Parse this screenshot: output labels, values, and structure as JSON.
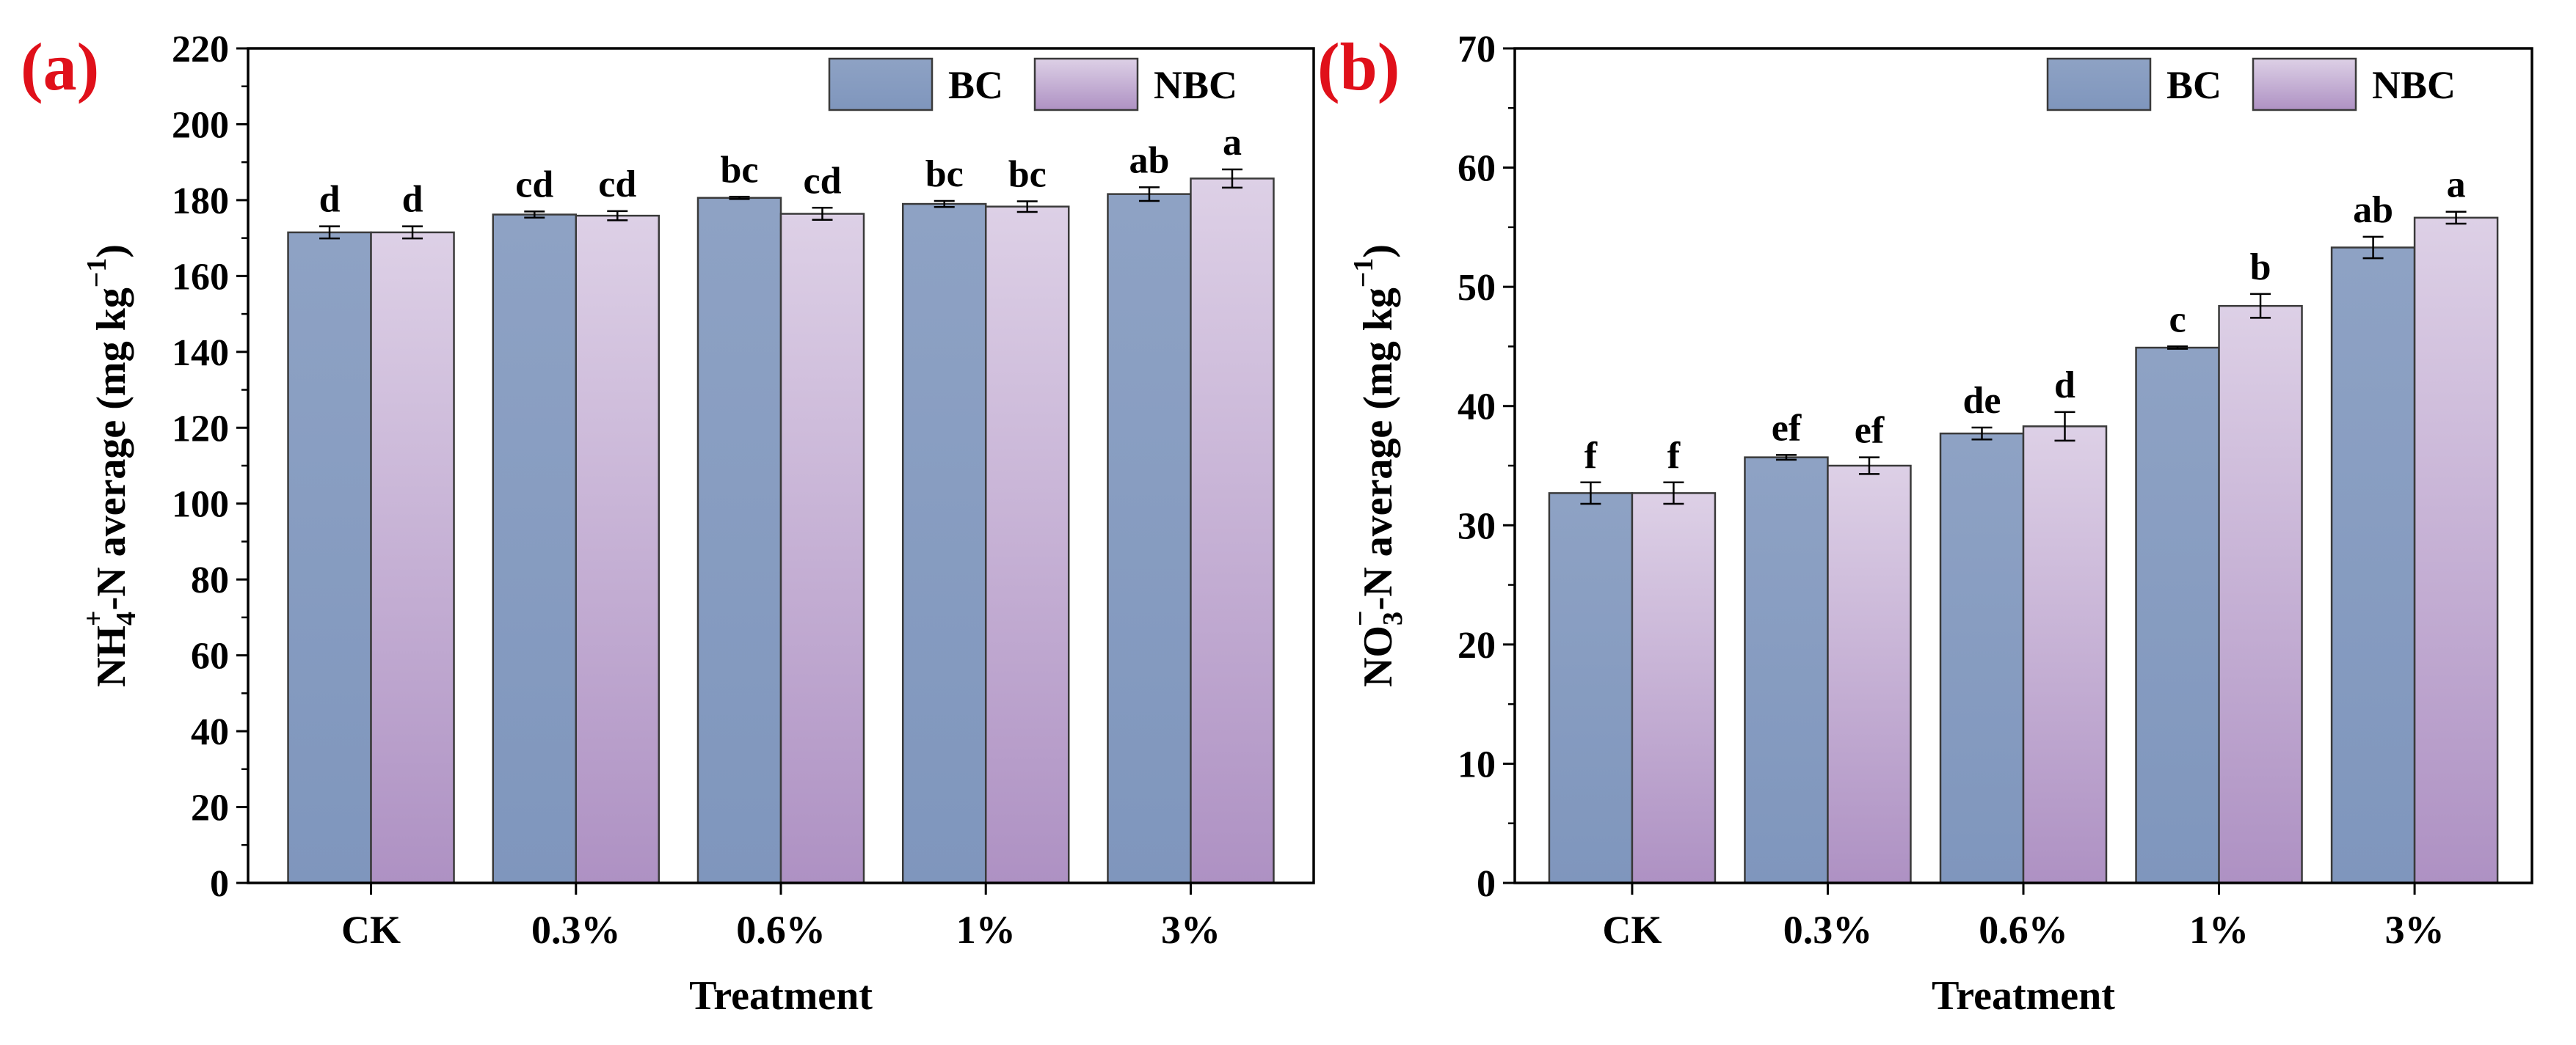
{
  "colors": {
    "bc_top": "#8ea2c4",
    "bc_bottom": "#7f96bd",
    "nbc_top": "#ddd0e6",
    "nbc_bottom": "#ae91c3",
    "panel_label": "#e0101a",
    "axis": "#000000"
  },
  "chart_data": [
    {
      "type": "bar",
      "panel_label": "(a)",
      "categories": [
        "CK",
        "0.3%",
        "0.6%",
        "1%",
        "3%"
      ],
      "xlabel": "Treatment",
      "ylabel": {
        "base": "NH",
        "sub": "4",
        "sup": "+",
        "mid": "-N average (mg kg",
        "unit_sup": "−1",
        "end": ")"
      },
      "ylim": [
        0,
        220
      ],
      "yticks": [
        0,
        20,
        40,
        60,
        80,
        100,
        120,
        140,
        160,
        180,
        200,
        220
      ],
      "series": [
        {
          "name": "BC",
          "values": [
            171.5,
            176.2,
            180.6,
            179.0,
            181.6
          ],
          "errors": [
            1.6,
            0.8,
            0.3,
            0.8,
            1.8
          ],
          "letters": [
            "d",
            "cd",
            "bc",
            "bc",
            "ab"
          ]
        },
        {
          "name": "NBC",
          "values": [
            171.5,
            175.9,
            176.4,
            178.3,
            185.7
          ],
          "errors": [
            1.6,
            1.2,
            1.6,
            1.4,
            2.4
          ],
          "letters": [
            "d",
            "cd",
            "cd",
            "bc",
            "a"
          ]
        }
      ],
      "legend": {
        "position": "top-right",
        "entries": [
          "BC",
          "NBC"
        ]
      }
    },
    {
      "type": "bar",
      "panel_label": "(b)",
      "categories": [
        "CK",
        "0.3%",
        "0.6%",
        "1%",
        "3%"
      ],
      "xlabel": "Treatment",
      "ylabel": {
        "base": "NO",
        "sub": "3",
        "sup": "−",
        "mid": "-N average (mg kg",
        "unit_sup": "−1",
        "end": ")"
      },
      "ylim": [
        0,
        70
      ],
      "yticks": [
        0,
        10,
        20,
        30,
        40,
        50,
        60,
        70
      ],
      "series": [
        {
          "name": "BC",
          "values": [
            32.7,
            35.7,
            37.7,
            44.9,
            53.3
          ],
          "errors": [
            0.9,
            0.2,
            0.5,
            0.1,
            0.9
          ],
          "letters": [
            "f",
            "ef",
            "de",
            "c",
            "ab"
          ]
        },
        {
          "name": "NBC",
          "values": [
            32.7,
            35.0,
            38.3,
            48.4,
            55.8
          ],
          "errors": [
            0.9,
            0.7,
            1.2,
            1.0,
            0.5
          ],
          "letters": [
            "f",
            "ef",
            "d",
            "b",
            "a"
          ]
        }
      ],
      "legend": {
        "position": "top-right",
        "entries": [
          "BC",
          "NBC"
        ]
      }
    }
  ]
}
